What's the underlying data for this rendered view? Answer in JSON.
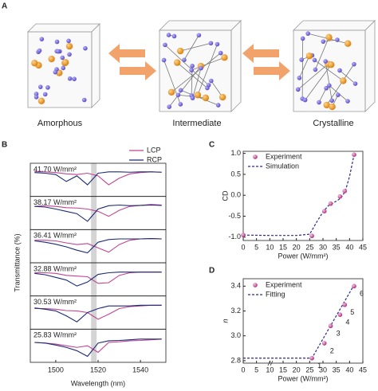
{
  "panel_a": {
    "letter": "A",
    "labels": [
      "Amorphous",
      "Intermediate",
      "Crystalline"
    ]
  },
  "chart_data": [
    {
      "type": "line",
      "letter": "B",
      "xlabel": "Wavelength (nm)",
      "ylabel": "Transmittance (%)",
      "x": [
        1490,
        1495,
        1500,
        1505,
        1510,
        1515,
        1520,
        1525,
        1530,
        1535,
        1540,
        1545,
        1550
      ],
      "xlim": [
        1488,
        1552
      ],
      "xticks": [
        1500,
        1520,
        1540
      ],
      "ylim": [
        0,
        1
      ],
      "highlight_x": 1518,
      "legend": "upper right",
      "panels": [
        {
          "label": "41.70 W/mm²",
          "series": [
            {
              "name": "LCP",
              "color": "#c0448f",
              "values": [
                0.75,
                0.74,
                0.72,
                0.68,
                0.66,
                0.7,
                0.62,
                0.35,
                0.55,
                0.68,
                0.72,
                0.74,
                0.73
              ]
            },
            {
              "name": "RCP",
              "color": "#1b2a78",
              "values": [
                0.72,
                0.7,
                0.66,
                0.45,
                0.62,
                0.35,
                0.7,
                0.74,
                0.74,
                0.73,
                0.74,
                0.74,
                0.73
              ]
            }
          ]
        },
        {
          "label": "38.17 W/mm²",
          "series": [
            {
              "name": "LCP",
              "color": "#c0448f",
              "values": [
                0.7,
                0.72,
                0.7,
                0.66,
                0.65,
                0.62,
                0.55,
                0.4,
                0.58,
                0.7,
                0.73,
                0.76,
                0.74
              ]
            },
            {
              "name": "RCP",
              "color": "#1b2a78",
              "values": [
                0.7,
                0.68,
                0.62,
                0.55,
                0.48,
                0.25,
                0.62,
                0.72,
                0.74,
                0.72,
                0.73,
                0.74,
                0.73
              ]
            }
          ]
        },
        {
          "label": "36.41 W/mm²",
          "series": [
            {
              "name": "LCP",
              "color": "#c0448f",
              "values": [
                0.68,
                0.68,
                0.66,
                0.6,
                0.55,
                0.58,
                0.45,
                0.32,
                0.55,
                0.68,
                0.72,
                0.73,
                0.72
              ]
            },
            {
              "name": "RCP",
              "color": "#1b2a78",
              "values": [
                0.66,
                0.62,
                0.56,
                0.48,
                0.38,
                0.3,
                0.62,
                0.7,
                0.72,
                0.72,
                0.72,
                0.73,
                0.72
              ]
            }
          ]
        },
        {
          "label": "32.88 W/mm²",
          "series": [
            {
              "name": "LCP",
              "color": "#c0448f",
              "values": [
                0.7,
                0.7,
                0.68,
                0.62,
                0.6,
                0.58,
                0.38,
                0.4,
                0.62,
                0.7,
                0.72,
                0.72,
                0.72
              ]
            },
            {
              "name": "RCP",
              "color": "#1b2a78",
              "values": [
                0.68,
                0.64,
                0.56,
                0.48,
                0.3,
                0.42,
                0.65,
                0.7,
                0.72,
                0.72,
                0.72,
                0.72,
                0.72
              ]
            }
          ]
        },
        {
          "label": "30.53 W/mm²",
          "series": [
            {
              "name": "LCP",
              "color": "#c0448f",
              "values": [
                0.62,
                0.62,
                0.6,
                0.56,
                0.55,
                0.5,
                0.3,
                0.45,
                0.62,
                0.68,
                0.7,
                0.72,
                0.72
              ]
            },
            {
              "name": "RCP",
              "color": "#1b2a78",
              "values": [
                0.64,
                0.6,
                0.55,
                0.4,
                0.22,
                0.5,
                0.62,
                0.7,
                0.7,
                0.7,
                0.72,
                0.72,
                0.72
              ]
            }
          ]
        },
        {
          "label": "25.83 W/mm²",
          "series": [
            {
              "name": "LCP",
              "color": "#c0448f",
              "values": [
                0.6,
                0.58,
                0.55,
                0.5,
                0.45,
                0.5,
                0.3,
                0.6,
                0.62,
                0.65,
                0.66,
                0.68,
                0.7
              ]
            },
            {
              "name": "RCP",
              "color": "#1b2a78",
              "values": [
                0.6,
                0.58,
                0.52,
                0.45,
                0.35,
                0.18,
                0.58,
                0.65,
                0.66,
                0.68,
                0.7,
                0.7,
                0.7
              ]
            }
          ]
        }
      ]
    },
    {
      "type": "scatter",
      "letter": "C",
      "xlabel": "Power (W/mm²)",
      "ylabel": "CD",
      "xlim": [
        0,
        45
      ],
      "xticks": [
        0,
        5,
        10,
        15,
        20,
        25,
        30,
        35,
        40,
        45
      ],
      "ylim": [
        -1.08,
        1.05
      ],
      "yticks": [
        {
          "value": -1,
          "label": "-1.0"
        },
        -0.5,
        {
          "value": 0,
          "label": "0.0"
        },
        0.5,
        {
          "value": 1,
          "label": "1.0"
        }
      ],
      "legend": "upper left",
      "series": [
        {
          "name": "Experiment",
          "kind": "scatter",
          "color": "#c0448f",
          "x": [
            0,
            25.83,
            30.53,
            32.88,
            36.41,
            38.17,
            41.7
          ],
          "values": [
            -0.95,
            -0.97,
            -0.38,
            -0.2,
            -0.03,
            0.1,
            0.97
          ]
        },
        {
          "name": "Simulation",
          "kind": "dashed",
          "color": "#2a2a8a",
          "x": [
            0,
            10,
            20,
            25,
            28,
            30,
            32,
            34,
            36,
            37.5,
            38.5,
            40,
            41.7
          ],
          "values": [
            -0.95,
            -0.96,
            -0.96,
            -0.93,
            -0.6,
            -0.4,
            -0.25,
            -0.18,
            -0.1,
            0.0,
            0.12,
            0.45,
            0.97
          ]
        }
      ]
    },
    {
      "type": "scatter",
      "letter": "D",
      "xlabel": "Power (W/mm²)",
      "ylabel": "n",
      "xlim": [
        0,
        45
      ],
      "xticks": [
        0,
        5,
        10,
        15,
        20,
        25,
        30,
        35,
        40,
        45
      ],
      "ylim": [
        2.78,
        3.46
      ],
      "yticks": [
        2.8,
        {
          "value": 3,
          "label": "3.0"
        },
        3.2,
        3.4
      ],
      "legend": "upper left",
      "series": [
        {
          "name": "Experiment",
          "kind": "scatter",
          "color": "#c0448f",
          "x": [
            25.83,
            30.53,
            32.88,
            36.41,
            38.17,
            41.7
          ],
          "values": [
            2.82,
            2.94,
            3.08,
            3.17,
            3.25,
            3.4
          ],
          "point_labels": [
            "1",
            "2",
            "3",
            "4",
            "5",
            "6"
          ]
        },
        {
          "name": "Fitting",
          "kind": "dashed",
          "color": "#2a2a8a",
          "x": [
            0,
            25.83,
            41.7
          ],
          "values": [
            2.82,
            2.82,
            3.41
          ]
        }
      ]
    }
  ]
}
